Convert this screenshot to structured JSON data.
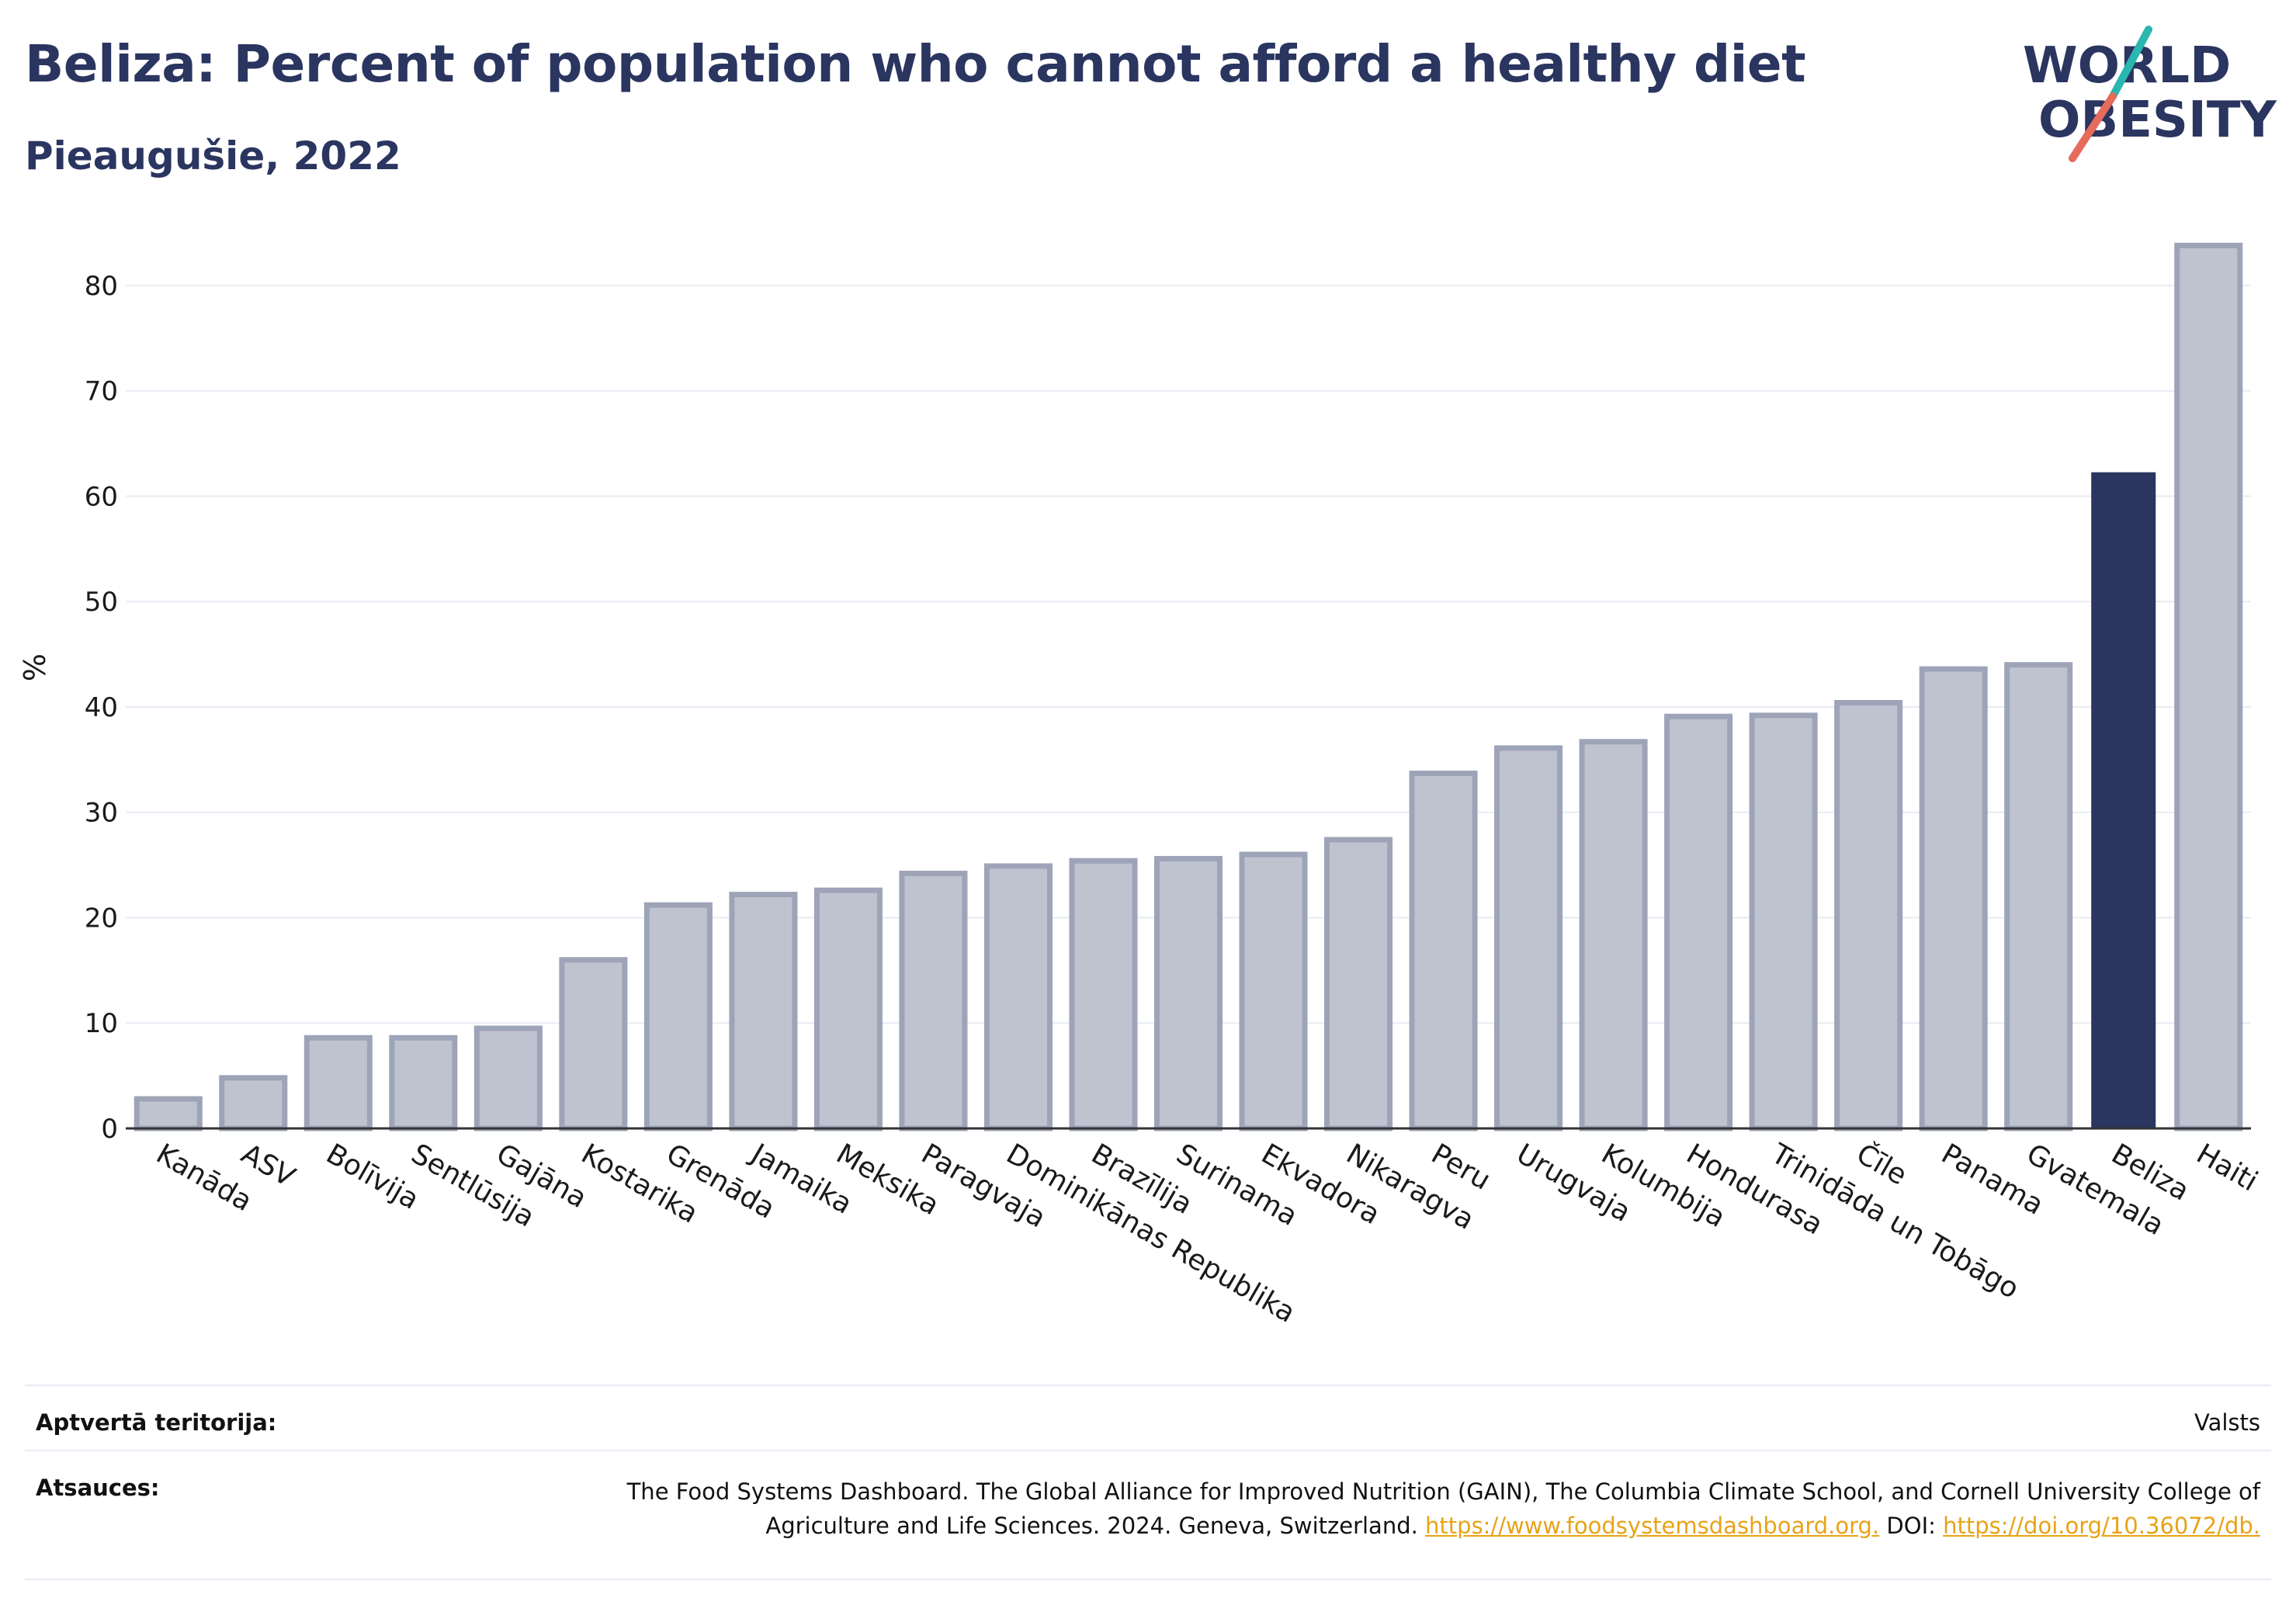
{
  "title": "Beliza: Percent of population who cannot afford a healthy diet",
  "subtitle": "Pieaugušie, 2022",
  "logo": {
    "line1": "WORLD",
    "line2": "OBESITY",
    "accent_teal": "#2ab7b0",
    "accent_red": "#e56b5b",
    "color": "#2a3560"
  },
  "colors": {
    "bar_default_fill": "#bfc3d0",
    "bar_default_stroke": "#9ea4b8",
    "bar_highlight": "#2a3560",
    "grid": "#e8ebf3",
    "axis": "#333333"
  },
  "chart_data": {
    "type": "bar",
    "categories": [
      "Kanāda",
      "ASV",
      "Bolīvija",
      "Sentlūsija",
      "Gajāna",
      "Kostarika",
      "Grenāda",
      "Jamaika",
      "Meksika",
      "Paragvaja",
      "Dominikānas Republika",
      "Brazīlija",
      "Surinama",
      "Ekvadora",
      "Nikaragva",
      "Peru",
      "Urugvaja",
      "Kolumbija",
      "Hondurasa",
      "Trinidāda un Tobāgo",
      "Čīle",
      "Panama",
      "Gvatemala",
      "Beliza",
      "Haiti"
    ],
    "values": [
      2.8,
      4.8,
      8.6,
      8.6,
      9.5,
      16.0,
      21.2,
      22.2,
      22.6,
      24.2,
      24.9,
      25.4,
      25.6,
      26.0,
      27.4,
      33.7,
      36.1,
      36.7,
      39.1,
      39.2,
      40.4,
      43.6,
      44.0,
      62.2,
      83.8
    ],
    "highlight": "Beliza",
    "ylabel": "%",
    "xlabel": "",
    "ylim": [
      0,
      85
    ],
    "yticks": [
      0,
      10,
      20,
      30,
      40,
      50,
      60,
      70,
      80
    ],
    "grid": true,
    "legend": false
  },
  "footer": {
    "coverage_label": "Aptvertā teritorija:",
    "coverage_value": "Valsts",
    "sources_label": "Atsauces:",
    "sources_text1": "The Food Systems Dashboard. The Global Alliance for Improved Nutrition (GAIN), The Columbia Climate School, and Cornell University College of Agriculture and Life Sciences. 2024. Geneva, Switzerland.",
    "sources_link1": "https://www.foodsystemsdashboard.org.",
    "sources_doi_label": "DOI:",
    "sources_link2": "https://doi.org/10.36072/db."
  }
}
